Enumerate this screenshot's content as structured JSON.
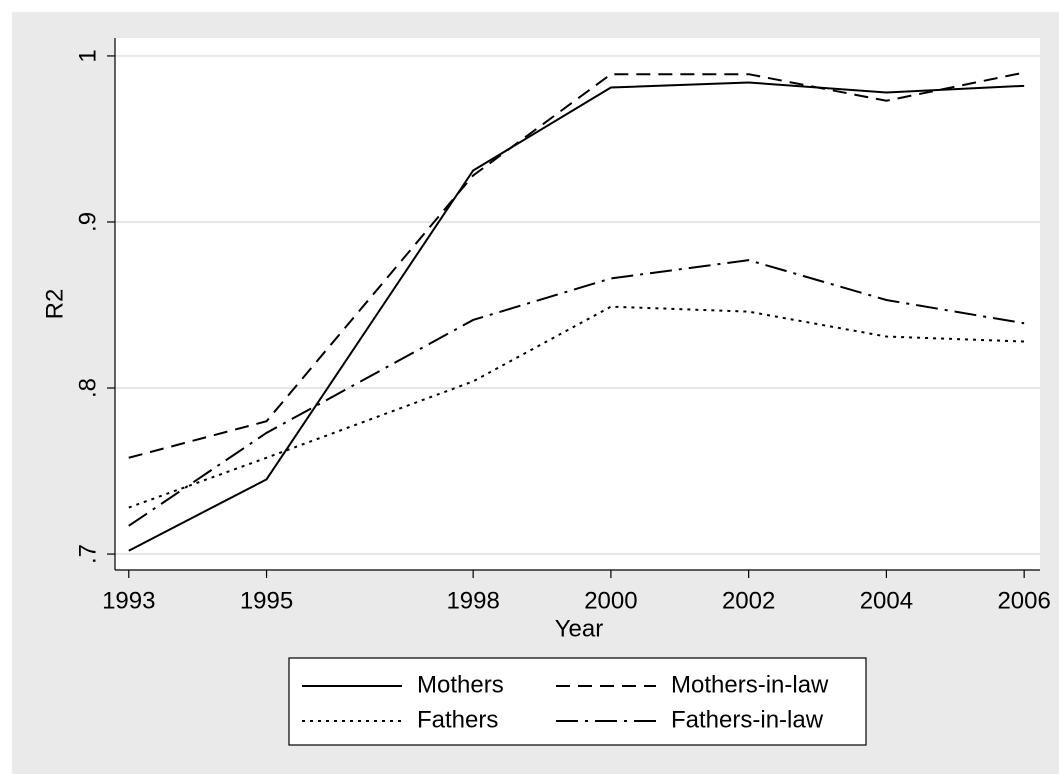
{
  "chart_data": {
    "type": "line",
    "x_label": "Year",
    "y_label": "R2",
    "x": [
      1993,
      1995,
      1998,
      2000,
      2002,
      2004,
      2006
    ],
    "series": [
      {
        "name": "Mothers",
        "color": "#000000",
        "dash": "solid",
        "values": [
          0.702,
          0.745,
          0.931,
          0.981,
          0.984,
          0.978,
          0.982
        ]
      },
      {
        "name": "Mothers-in-law",
        "color": "#000000",
        "dash": "dashed",
        "values": [
          0.758,
          0.78,
          0.928,
          0.989,
          0.989,
          0.973,
          0.99
        ]
      },
      {
        "name": "Fathers",
        "color": "#000000",
        "dash": "dotted",
        "values": [
          0.728,
          0.758,
          0.804,
          0.849,
          0.846,
          0.831,
          0.828
        ]
      },
      {
        "name": "Fathers-in-law",
        "color": "#000000",
        "dash": "dashdot",
        "values": [
          0.717,
          0.773,
          0.841,
          0.866,
          0.877,
          0.853,
          0.839
        ]
      }
    ],
    "xlim": [
      1992.8,
      2006.23
    ],
    "xticks": [
      1993,
      1995,
      1998,
      2000,
      2002,
      2004,
      2006
    ],
    "ylim": [
      0.6904,
      1.0108
    ],
    "yticks": [
      {
        "value": 0.7,
        "label": ".7"
      },
      {
        "value": 0.8,
        "label": ".8"
      },
      {
        "value": 0.9,
        "label": ".9"
      },
      1
    ],
    "grid": true,
    "legend": "bottom"
  }
}
